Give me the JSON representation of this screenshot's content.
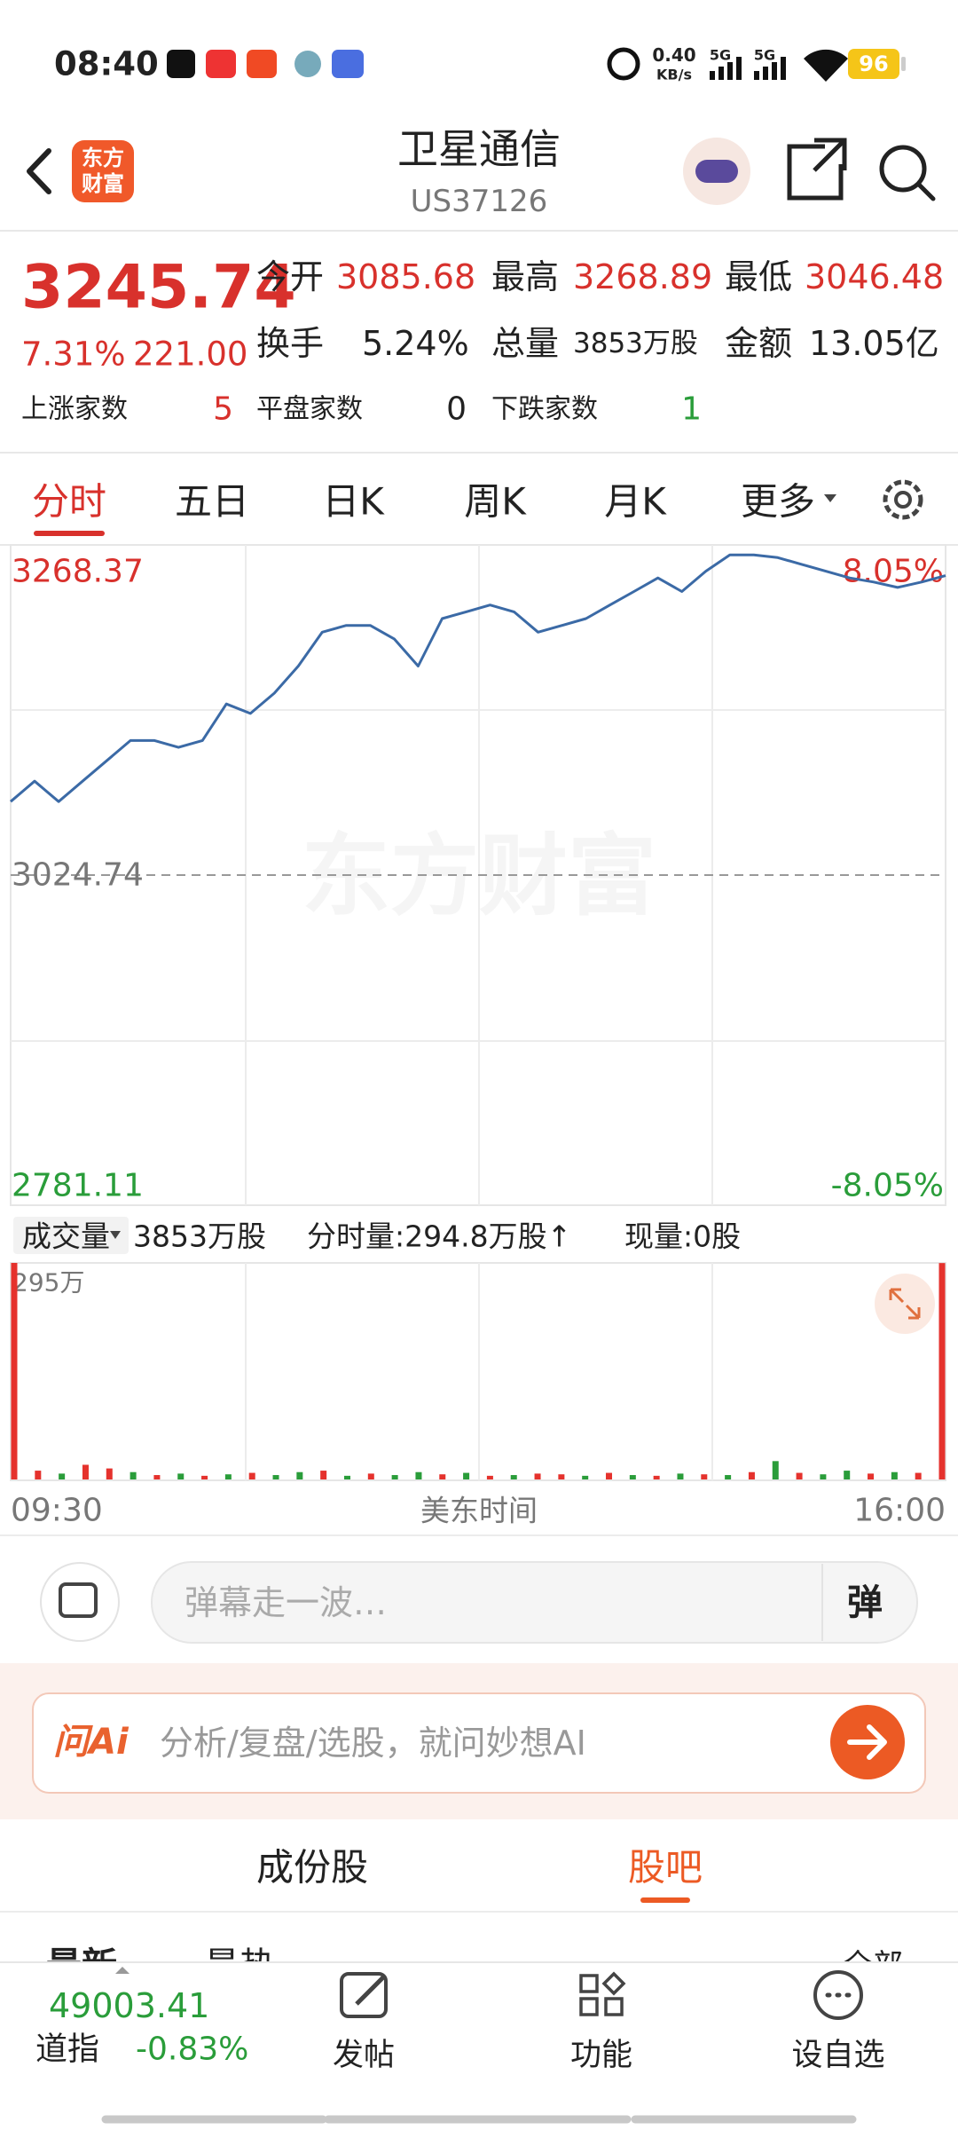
{
  "status_bar": {
    "time": "08:40",
    "speed": "0.40",
    "speed_unit": "KB/s",
    "network_1": "5G",
    "network_2": "5G",
    "battery": "96"
  },
  "header": {
    "logo_line1": "东方",
    "logo_line2": "财富",
    "title": "卫星通信",
    "code": "US37126"
  },
  "quote": {
    "price": "3245.74",
    "change_pct": "7.31%",
    "change": "221.00",
    "stats": [
      {
        "label": "今开",
        "value": "3085.68"
      },
      {
        "label": "最高",
        "value": "3268.89"
      },
      {
        "label": "最低",
        "value": "3046.48"
      },
      {
        "label": "换手",
        "value": "5.24%"
      },
      {
        "label": "总量",
        "value": "3853万股"
      },
      {
        "label": "金额",
        "value": "13.05亿"
      }
    ],
    "breadth": [
      {
        "label": "上涨家数",
        "value": "5"
      },
      {
        "label": "平盘家数",
        "value": "0"
      },
      {
        "label": "下跌家数",
        "value": "1"
      }
    ]
  },
  "tabs": [
    "分时",
    "五日",
    "日K",
    "周K",
    "月K",
    "更多"
  ],
  "chart_data": [
    {
      "type": "line",
      "watermark": "东方财富",
      "x_label": "美东时间",
      "color": "#3b6aa6",
      "x": [
        0,
        10,
        20,
        30,
        40,
        50,
        60,
        70,
        80,
        90,
        100,
        110,
        120,
        130,
        140,
        150,
        160,
        170,
        180,
        190,
        200,
        210,
        220,
        230,
        240,
        250,
        260,
        270,
        280,
        290,
        300,
        310,
        320,
        330,
        340,
        350,
        360,
        370,
        380,
        390
      ],
      "values": [
        3079,
        3094,
        3079,
        3094,
        3109,
        3124,
        3124,
        3119,
        3124,
        3151,
        3144,
        3159,
        3179,
        3204,
        3209,
        3209,
        3199,
        3179,
        3214,
        3219,
        3224,
        3219,
        3204,
        3209,
        3214,
        3224,
        3234,
        3244,
        3234,
        3249,
        3261,
        3261,
        3259,
        3254,
        3249,
        3244,
        3241,
        3237,
        3241,
        3245.74
      ],
      "xlim": [
        0,
        390
      ],
      "xticks": [
        {
          "value": 0,
          "label": "09:30"
        },
        {
          "value": 390,
          "label": "16:00"
        }
      ],
      "ylim": [
        2781.11,
        3268.37
      ],
      "yticks": [
        2781.11,
        3024.74,
        3268.37
      ],
      "y2lim": [
        -8.05,
        8.05
      ],
      "y2ticks": [
        {
          "value": -8.05,
          "label": "-8.05%"
        },
        {
          "value": 8.05,
          "label": "8.05%"
        }
      ]
    },
    {
      "type": "bar",
      "indicator": "成交量",
      "total": "3853万股",
      "interval_volume": "分时量:294.8万股↑",
      "current": "现量:0股",
      "values": [
        295,
        12,
        8,
        20,
        15,
        10,
        6,
        8,
        5,
        7,
        9,
        6,
        10,
        12,
        5,
        8,
        6,
        10,
        7,
        9,
        5,
        6,
        8,
        7,
        5,
        9,
        6,
        5,
        8,
        7,
        6,
        10,
        25,
        9,
        7,
        12,
        8,
        10,
        9,
        294.8
      ],
      "colors": [
        "#e5322d",
        "#e5322d",
        "#2a9d3a",
        "#e5322d",
        "#e5322d",
        "#2a9d3a",
        "#e5322d",
        "#2a9d3a",
        "#e5322d",
        "#2a9d3a",
        "#e5322d",
        "#2a9d3a",
        "#2a9d3a",
        "#e5322d",
        "#2a9d3a",
        "#e5322d",
        "#2a9d3a",
        "#2a9d3a",
        "#e5322d",
        "#2a9d3a",
        "#e5322d",
        "#2a9d3a",
        "#e5322d",
        "#e5322d",
        "#2a9d3a",
        "#e5322d",
        "#2a9d3a",
        "#e5322d",
        "#2a9d3a",
        "#e5322d",
        "#2a9d3a",
        "#e5322d",
        "#2a9d3a",
        "#e5322d",
        "#2a9d3a",
        "#2a9d3a",
        "#e5322d",
        "#2a9d3a",
        "#e5322d",
        "#e5322d"
      ],
      "ylim": [
        0,
        295
      ],
      "yticks": [
        {
          "value": 295,
          "label": "295万"
        }
      ]
    }
  ],
  "danmaku": {
    "placeholder": "弹幕走一波…",
    "button": "弹"
  },
  "ai_bar": {
    "badge": "问Ai",
    "placeholder": "分析/复盘/选股，就问妙想AI"
  },
  "section_tabs": [
    "成份股",
    "股吧"
  ],
  "feed_tabs": [
    "最新",
    "最热",
    "全部"
  ],
  "bottom_bar": {
    "index_value": "49003.41",
    "index_name": "道指",
    "index_change": "-0.83%",
    "actions": [
      "发帖",
      "功能",
      "设自选"
    ]
  }
}
